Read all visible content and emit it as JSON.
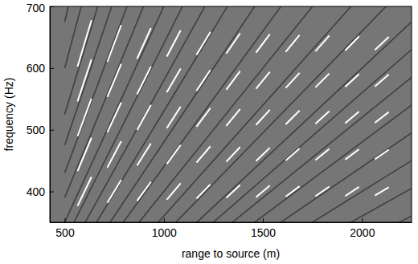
{
  "chart_data": {
    "type": "segments",
    "xlabel": "range to source (m)",
    "ylabel": "frequency (Hz)",
    "xlim": [
      425,
      2250
    ],
    "ylim": [
      350,
      700
    ],
    "xticks": [
      500,
      1000,
      1500,
      2000
    ],
    "yticks": [
      400,
      500,
      600,
      700
    ],
    "color": "#ffffff",
    "striations": [
      {
        "x": [
          500,
          2250
        ],
        "y": [
          80,
          360
        ]
      },
      {
        "x": [
          500,
          2250
        ],
        "y": [
          90,
          405
        ]
      },
      {
        "x": [
          500,
          2250
        ],
        "y": [
          100,
          450
        ]
      },
      {
        "x": [
          500,
          2250
        ],
        "y": [
          110,
          495
        ]
      },
      {
        "x": [
          500,
          2250
        ],
        "y": [
          120,
          540
        ]
      },
      {
        "x": [
          500,
          2250
        ],
        "y": [
          130,
          585
        ]
      },
      {
        "x": [
          500,
          2250
        ],
        "y": [
          140,
          630
        ]
      },
      {
        "x": [
          500,
          2250
        ],
        "y": [
          150,
          675
        ]
      },
      {
        "x": [
          500,
          2250
        ],
        "y": [
          165,
          742.5
        ]
      },
      {
        "x": [
          500,
          2250
        ],
        "y": [
          180,
          810
        ]
      },
      {
        "x": [
          500,
          2250
        ],
        "y": [
          200,
          900
        ]
      },
      {
        "x": [
          500,
          2250
        ],
        "y": [
          220,
          990
        ]
      },
      {
        "x": [
          500,
          2250
        ],
        "y": [
          240,
          1080
        ]
      },
      {
        "x": [
          500,
          2250
        ],
        "y": [
          265,
          1192.5
        ]
      },
      {
        "x": [
          500,
          2250
        ],
        "y": [
          290,
          1305
        ]
      },
      {
        "x": [
          500,
          2250
        ],
        "y": [
          320,
          1440
        ]
      },
      {
        "x": [
          500,
          2250
        ],
        "y": [
          350,
          1575
        ]
      },
      {
        "x": [
          500,
          2250
        ],
        "y": [
          390,
          1755
        ]
      },
      {
        "x": [
          500,
          2250
        ],
        "y": [
          430,
          1935
        ]
      },
      {
        "x": [
          500,
          2250
        ],
        "y": [
          475,
          2137.5
        ]
      },
      {
        "x": [
          500,
          2250
        ],
        "y": [
          525,
          2362.5
        ]
      },
      {
        "x": [
          500,
          2250
        ],
        "y": [
          600,
          2700
        ]
      },
      {
        "x": [
          500,
          2250
        ],
        "y": [
          675,
          3037.5
        ]
      }
    ],
    "segments": {
      "x": [
        600,
        600,
        600,
        600,
        600,
        750,
        750,
        750,
        750,
        750,
        900,
        900,
        900,
        900,
        900,
        1050,
        1050,
        1050,
        1050,
        1050,
        1200,
        1200,
        1200,
        1200,
        1200,
        1350,
        1350,
        1350,
        1350,
        1350,
        1500,
        1500,
        1500,
        1500,
        1500,
        1650,
        1650,
        1650,
        1650,
        1650,
        1800,
        1800,
        1800,
        1800,
        1800,
        1950,
        1950,
        1950,
        1950,
        1950,
        2100,
        2100,
        2100,
        2100,
        2100
      ],
      "y": [
        400,
        460,
        520,
        580,
        640,
        400,
        460,
        520,
        580,
        640,
        400,
        460,
        520,
        580,
        640,
        400,
        460,
        520,
        580,
        640,
        400,
        460,
        520,
        580,
        640,
        400,
        460,
        520,
        580,
        640,
        400,
        460,
        520,
        580,
        640,
        400,
        460,
        520,
        580,
        640,
        400,
        460,
        520,
        580,
        640,
        400,
        460,
        520,
        580,
        640,
        400,
        460,
        520,
        580,
        640
      ],
      "slope": [
        0.67,
        0.77,
        0.87,
        0.97,
        1.07,
        0.53,
        0.61,
        0.69,
        0.77,
        0.85,
        0.44,
        0.51,
        0.58,
        0.64,
        0.71,
        0.38,
        0.44,
        0.5,
        0.55,
        0.61,
        0.33,
        0.38,
        0.43,
        0.48,
        0.53,
        0.3,
        0.34,
        0.39,
        0.43,
        0.47,
        0.27,
        0.31,
        0.35,
        0.39,
        0.43,
        0.24,
        0.28,
        0.32,
        0.35,
        0.39,
        0.22,
        0.26,
        0.29,
        0.32,
        0.36,
        0.21,
        0.24,
        0.27,
        0.3,
        0.33,
        0.19,
        0.22,
        0.25,
        0.28,
        0.3
      ]
    }
  }
}
